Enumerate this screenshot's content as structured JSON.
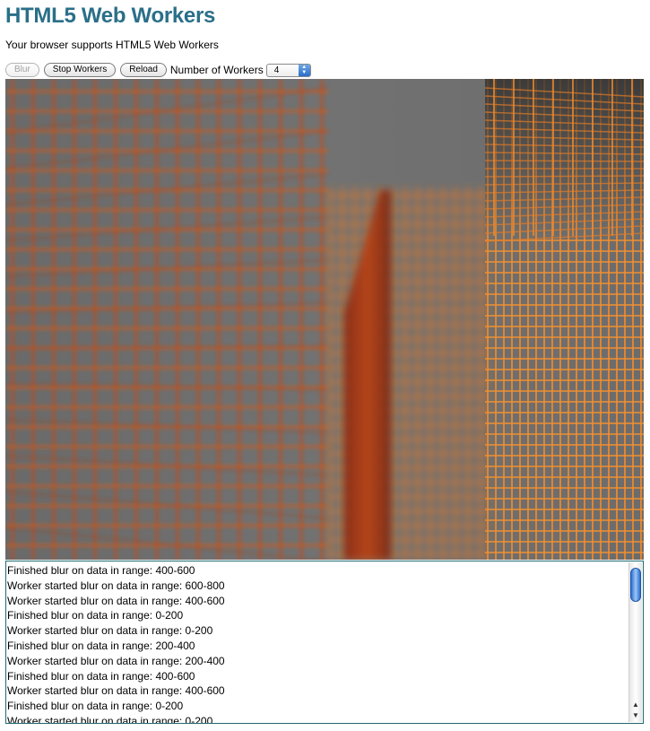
{
  "page": {
    "title": "HTML5 Web Workers",
    "support_message": "Your browser supports HTML5 Web Workers"
  },
  "controls": {
    "blur_label": "Blur",
    "stop_workers_label": "Stop Workers",
    "reload_label": "Reload",
    "workers_label": "Number of Workers",
    "workers_value": "4"
  },
  "icons": {
    "select_arrow": "up-down-arrows-icon",
    "scroll_up": "scroll-up-arrow-icon",
    "scroll_down": "scroll-down-arrow-icon"
  },
  "colors": {
    "title": "#2a6f88",
    "grid_line": "#e8781e",
    "canvas_background": "#6e6e6e",
    "scroll_thumb": "#2d6fd0"
  },
  "log": {
    "lines": [
      "Finished blur on data in range: 400-600",
      "Worker started blur on data in range: 600-800",
      "Worker started blur on data in range: 400-600",
      "Finished blur on data in range: 0-200",
      "Worker started blur on data in range: 0-200",
      "Finished blur on data in range: 200-400",
      "Worker started blur on data in range: 200-400",
      "Finished blur on data in range: 400-600",
      "Worker started blur on data in range: 400-600",
      "Finished blur on data in range: 0-200",
      "Worker started blur on data in range: 0-200"
    ]
  }
}
